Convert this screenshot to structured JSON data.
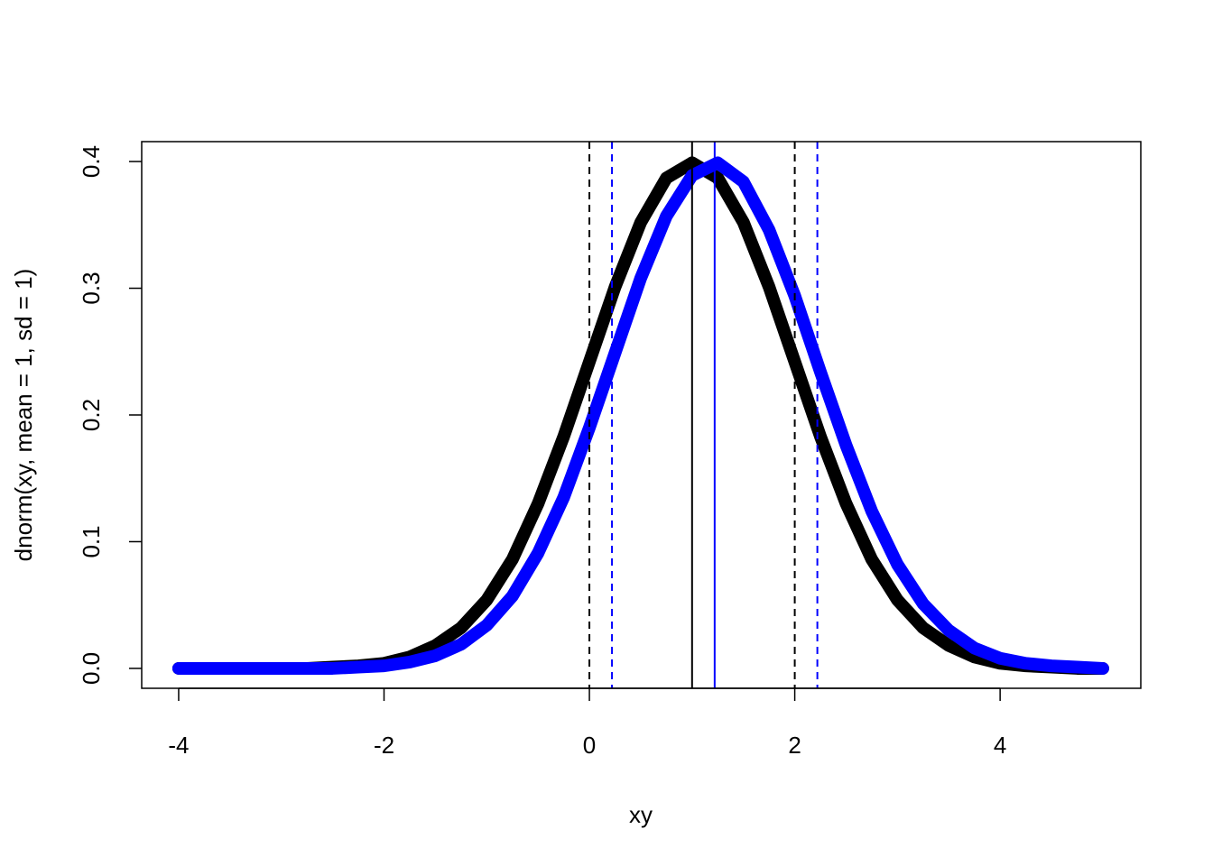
{
  "chart_data": {
    "type": "line",
    "xlabel": "xy",
    "ylabel": "dnorm(xy, mean = 1, sd = 1)",
    "x": [
      -4,
      -3.75,
      -3.5,
      -3.25,
      -3,
      -2.75,
      -2.5,
      -2.25,
      -2,
      -1.75,
      -1.5,
      -1.25,
      -1,
      -0.75,
      -0.5,
      -0.25,
      0,
      0.25,
      0.5,
      0.75,
      1,
      1.25,
      1.5,
      1.75,
      2,
      2.25,
      2.5,
      2.75,
      3,
      3.25,
      3.5,
      3.75,
      4,
      4.25,
      4.5,
      4.75,
      5
    ],
    "series": [
      {
        "color": "#000000",
        "values": [
          0,
          0,
          0,
          0,
          0,
          0,
          0.001,
          0.002,
          0.004,
          0.009,
          0.018,
          0.032,
          0.054,
          0.086,
          0.13,
          0.183,
          0.242,
          0.301,
          0.352,
          0.387,
          0.399,
          0.387,
          0.352,
          0.301,
          0.242,
          0.183,
          0.13,
          0.086,
          0.054,
          0.032,
          0.018,
          0.009,
          0.004,
          0.002,
          0.001,
          0,
          0
        ]
      },
      {
        "color": "#0000ff",
        "values": [
          0,
          0,
          0,
          0,
          0,
          0,
          0,
          0.001,
          0.002,
          0.005,
          0.01,
          0.019,
          0.034,
          0.057,
          0.091,
          0.135,
          0.19,
          0.249,
          0.308,
          0.357,
          0.389,
          0.399,
          0.384,
          0.346,
          0.294,
          0.234,
          0.176,
          0.124,
          0.082,
          0.051,
          0.03,
          0.016,
          0.008,
          0.004,
          0.002,
          0.001,
          0
        ]
      }
    ],
    "vlines": [
      {
        "x": 1,
        "color": "#000000",
        "dashed": false
      },
      {
        "x": 0,
        "color": "#000000",
        "dashed": true
      },
      {
        "x": 2,
        "color": "#000000",
        "dashed": true
      },
      {
        "x": 1.22,
        "color": "#0000ff",
        "dashed": false
      },
      {
        "x": 0.22,
        "color": "#0000ff",
        "dashed": true
      },
      {
        "x": 2.22,
        "color": "#0000ff",
        "dashed": true
      }
    ],
    "xlim": [
      -4.36,
      5.37
    ],
    "ylim": [
      -0.0157,
      0.4157
    ],
    "xticks": [
      -4,
      -2,
      0,
      2,
      4
    ],
    "yticks": [
      {
        "value": 0,
        "label": "0.0"
      },
      0.1,
      0.2,
      0.3,
      0.4
    ]
  }
}
